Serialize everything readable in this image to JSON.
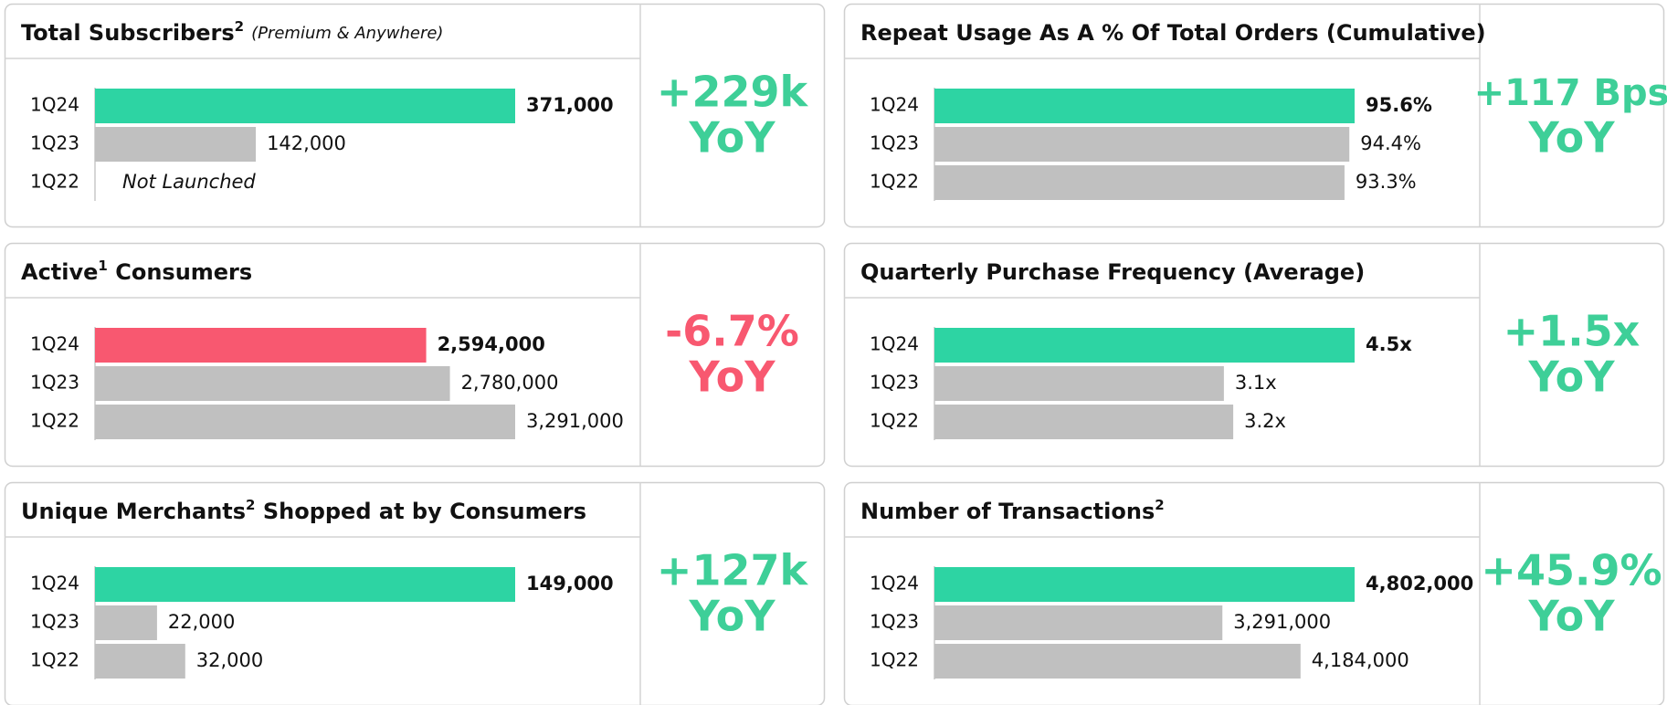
{
  "chart_data": [
    {
      "type": "bar",
      "title": "Total Subscribers",
      "title_note": "2",
      "subtitle": "(Premium & Anywhere)",
      "categories": [
        "1Q24",
        "1Q23",
        "1Q22"
      ],
      "values": [
        371000,
        142000,
        null
      ],
      "value_labels": [
        "371,000",
        "142,000",
        "Not Launched"
      ],
      "colors": [
        "#2dd4a3",
        "#c0c0c0",
        "#c0c0c0"
      ],
      "change": "+229k",
      "change_unit": "YoY",
      "change_color": "#3ecf98"
    },
    {
      "type": "bar",
      "title": "Repeat Usage As A % Of Total Orders (Cumulative)",
      "categories": [
        "1Q24",
        "1Q23",
        "1Q22"
      ],
      "values": [
        95.6,
        94.4,
        93.3
      ],
      "value_labels": [
        "95.6%",
        "94.4%",
        "93.3%"
      ],
      "colors": [
        "#2dd4a3",
        "#c0c0c0",
        "#c0c0c0"
      ],
      "change": "+117 Bps",
      "change_unit": "YoY",
      "change_color": "#3ecf98"
    },
    {
      "type": "bar",
      "title": "Active",
      "title_note": "1",
      "title_after": " Consumers",
      "categories": [
        "1Q24",
        "1Q23",
        "1Q22"
      ],
      "values": [
        2594000,
        2780000,
        3291000
      ],
      "value_labels": [
        "2,594,000",
        "2,780,000",
        "3,291,000"
      ],
      "colors": [
        "#f85870",
        "#c0c0c0",
        "#c0c0c0"
      ],
      "change": "-6.7%",
      "change_unit": "YoY",
      "change_color": "#f85870"
    },
    {
      "type": "bar",
      "title": "Quarterly Purchase Frequency (Average)",
      "categories": [
        "1Q24",
        "1Q23",
        "1Q22"
      ],
      "values": [
        4.5,
        3.1,
        3.2
      ],
      "value_labels": [
        "4.5x",
        "3.1x",
        "3.2x"
      ],
      "colors": [
        "#2dd4a3",
        "#c0c0c0",
        "#c0c0c0"
      ],
      "change": "+1.5x",
      "change_unit": "YoY",
      "change_color": "#3ecf98"
    },
    {
      "type": "bar",
      "title": "Unique Merchants",
      "title_note": "2",
      "title_after": " Shopped at by Consumers",
      "categories": [
        "1Q24",
        "1Q23",
        "1Q22"
      ],
      "values": [
        149000,
        22000,
        32000
      ],
      "value_labels": [
        "149,000",
        "22,000",
        "32,000"
      ],
      "colors": [
        "#2dd4a3",
        "#c0c0c0",
        "#c0c0c0"
      ],
      "change": "+127k",
      "change_unit": "YoY",
      "change_color": "#3ecf98"
    },
    {
      "type": "bar",
      "title": "Number of Transactions",
      "title_note": "2",
      "categories": [
        "1Q24",
        "1Q23",
        "1Q22"
      ],
      "values": [
        4802000,
        3291000,
        4184000
      ],
      "value_labels": [
        "4,802,000",
        "3,291,000",
        "4,184,000"
      ],
      "colors": [
        "#2dd4a3",
        "#c0c0c0",
        "#c0c0c0"
      ],
      "change": "+45.9%",
      "change_unit": "YoY",
      "change_color": "#3ecf98"
    }
  ]
}
